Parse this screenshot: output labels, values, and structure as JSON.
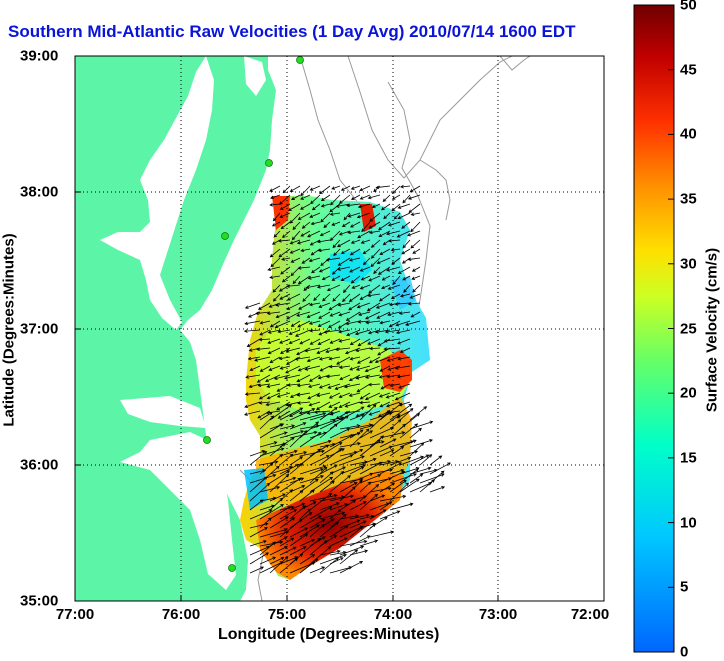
{
  "title": "Southern Mid-Atlantic Raw Velocities (1 Day Avg) 2010/07/14 1600 EDT",
  "x_axis": {
    "label": "Longitude (Degrees:Minutes)",
    "ticks": [
      "77:00",
      "76:00",
      "75:00",
      "74:00",
      "73:00",
      "72:00"
    ]
  },
  "y_axis": {
    "label": "Latitude (Degrees:Minutes)",
    "ticks": [
      "39:00",
      "38:00",
      "37:00",
      "36:00",
      "35:00"
    ]
  },
  "colorbar": {
    "label": "Surface Velocity (cm/s)",
    "ticks": [
      "50",
      "45",
      "40",
      "35",
      "30",
      "25",
      "20",
      "15",
      "10",
      "5",
      "0"
    ],
    "range": [
      0,
      50
    ],
    "colormap": "jet"
  },
  "colors": {
    "land": "#5cf5a8",
    "water": "#ffffff",
    "title": "#0a14d8",
    "bathymetry": "#9a9a9a",
    "stations": "#22dd22"
  }
}
